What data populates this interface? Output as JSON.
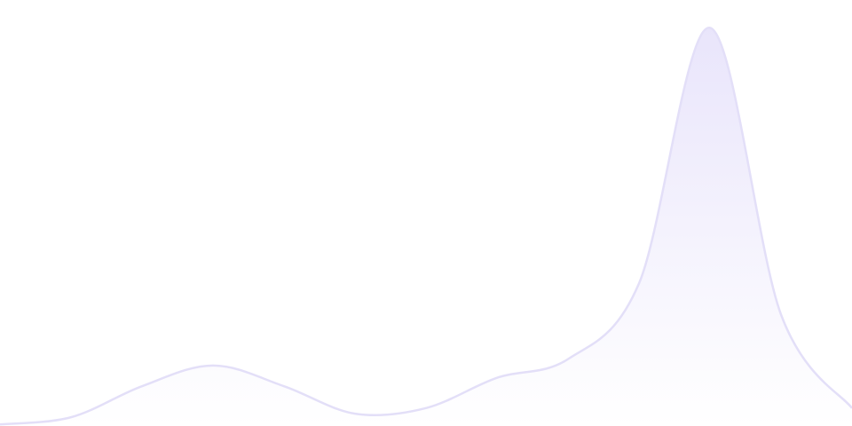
{
  "chart_data": {
    "type": "area",
    "title": "",
    "xlabel": "",
    "ylabel": "",
    "x": [
      0,
      1,
      2,
      3,
      4,
      5,
      6,
      7,
      8,
      9,
      10,
      11,
      12
    ],
    "values": [
      0.4,
      2.2,
      10,
      15.2,
      10,
      3.1,
      4.5,
      12.1,
      16.8,
      35.8,
      100,
      28,
      4.5
    ],
    "xlim": [
      0,
      12
    ],
    "ylim": [
      0,
      107
    ],
    "grid": false,
    "axes_visible": false,
    "smooth": true,
    "colors": {
      "line": "#e3dff8",
      "fill_top": "#e9e5fb",
      "fill_bottom": "#ffffff"
    }
  }
}
